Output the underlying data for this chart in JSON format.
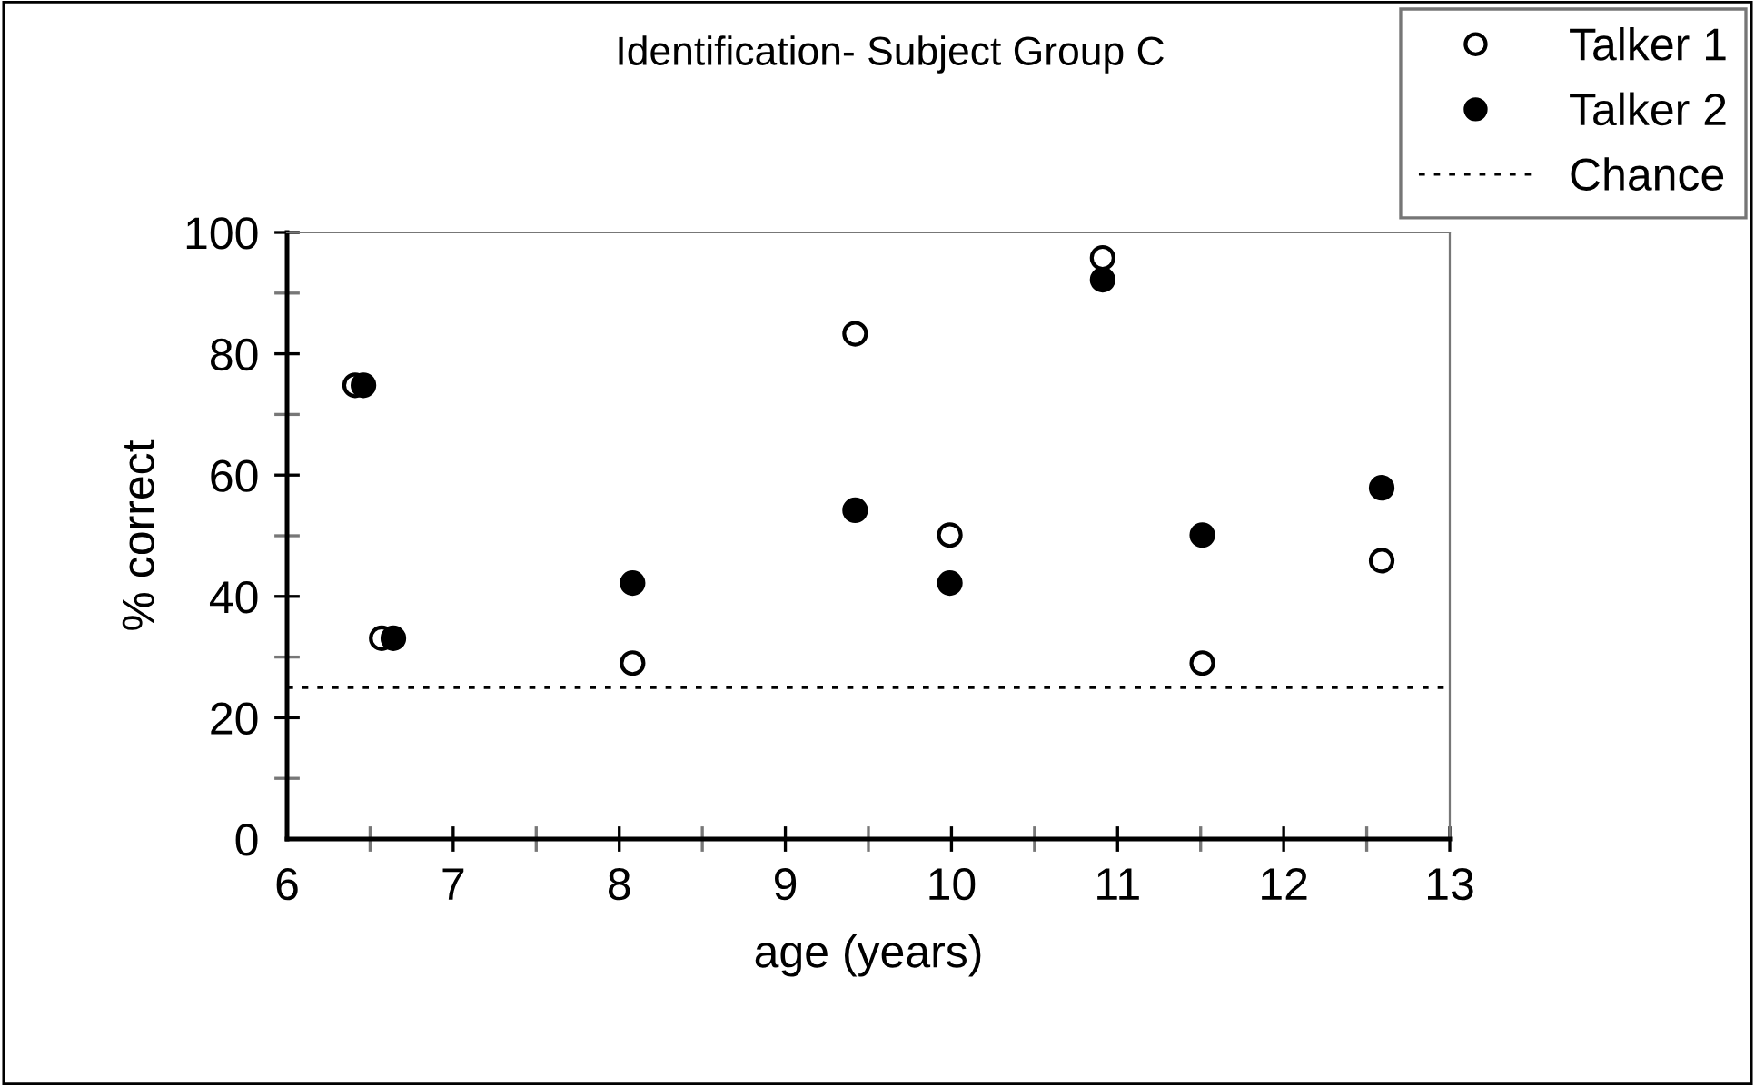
{
  "chart_data": {
    "type": "scatter",
    "title": "Identification- Subject Group C",
    "xlabel": "age (years)",
    "ylabel": "% correct",
    "series": [
      {
        "name": "Talker 1",
        "color": "#000000",
        "marker": "open circle",
        "x": [
          6.41,
          6.57,
          8.08,
          9.42,
          9.99,
          10.91,
          11.51,
          12.59
        ],
        "values": [
          74.8,
          33.1,
          29.0,
          83.3,
          50.1,
          95.8,
          29.0,
          45.9
        ]
      },
      {
        "name": "Talker 2",
        "color": "#000000",
        "marker": "circle",
        "x": [
          6.46,
          6.64,
          8.08,
          9.42,
          9.99,
          10.91,
          11.51,
          12.59
        ],
        "values": [
          74.8,
          33.1,
          42.2,
          54.2,
          42.2,
          92.2,
          50.1,
          57.9
        ]
      }
    ],
    "ref_lines": [
      {
        "axis": "y",
        "value": 25,
        "label": "Chance",
        "line_style": "dotted",
        "color": "#000000"
      }
    ],
    "xlim": [
      6,
      13
    ],
    "xticks": [
      6,
      7,
      8,
      9,
      10,
      11,
      12,
      13
    ],
    "ylim": [
      0,
      100
    ],
    "yticks": [
      0,
      20,
      40,
      60,
      80,
      100
    ],
    "grid": false,
    "legend": "top right"
  }
}
